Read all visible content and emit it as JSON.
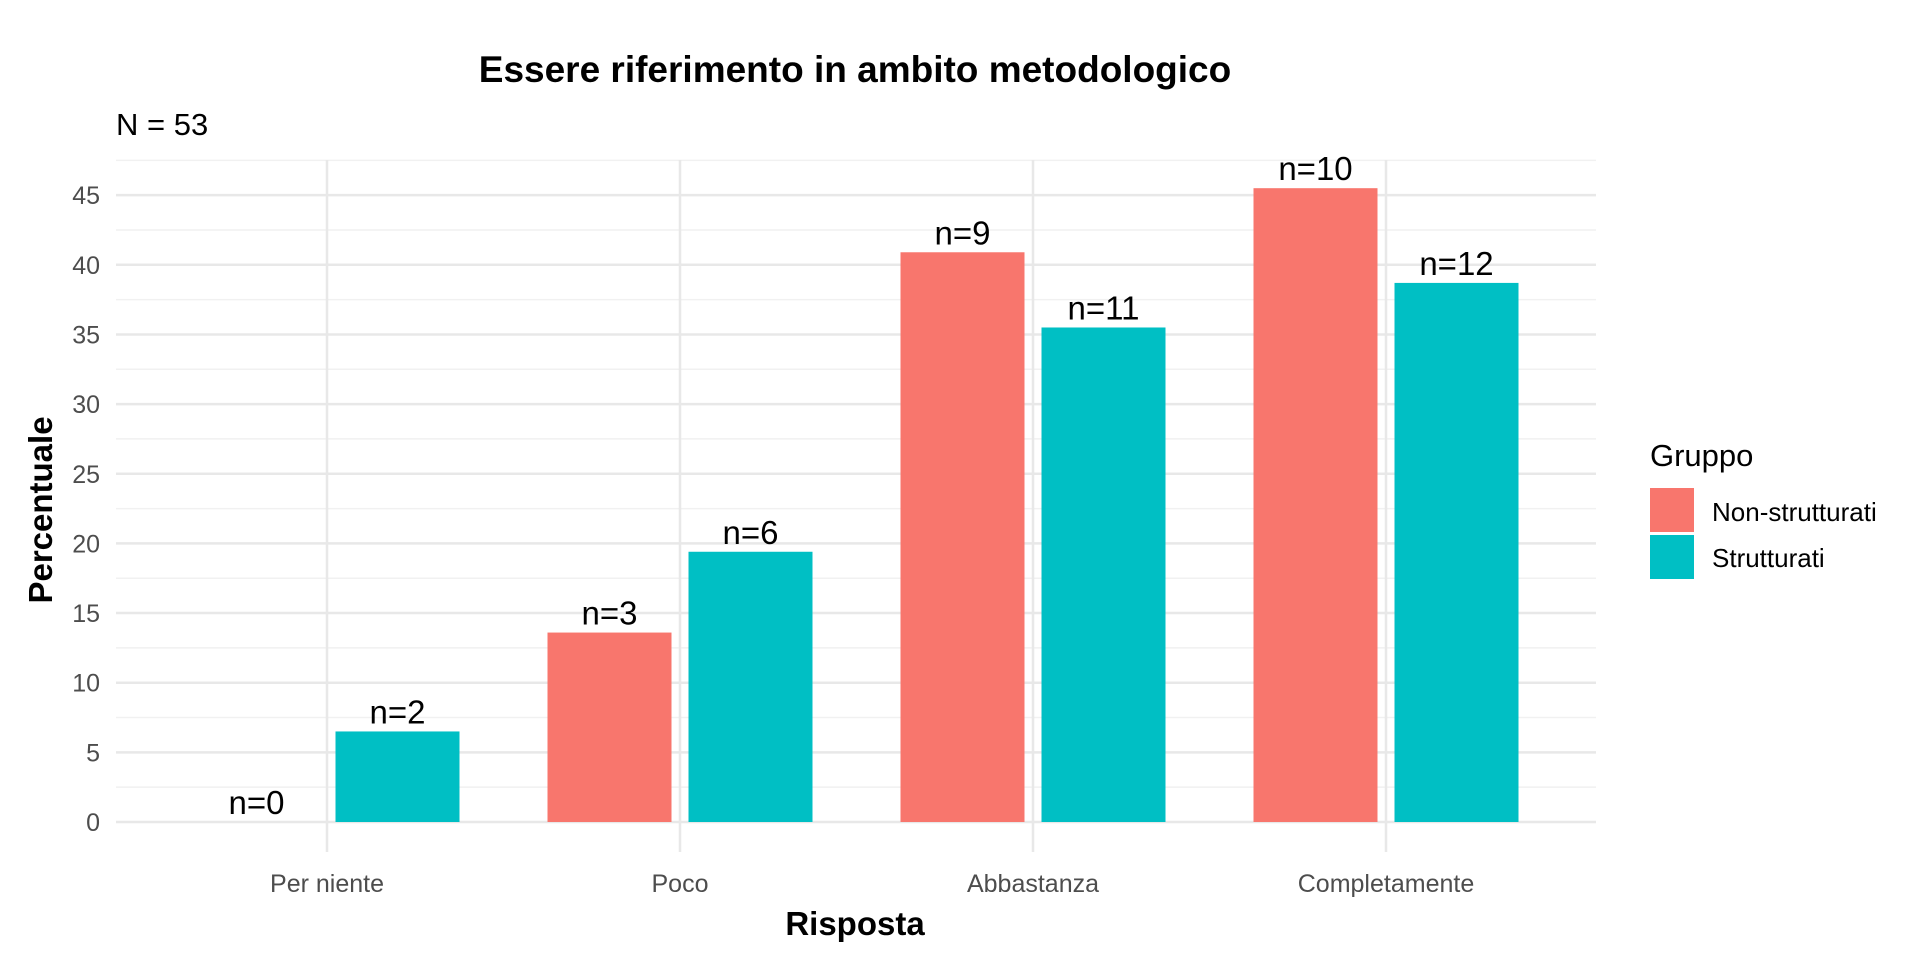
{
  "chart_data": {
    "type": "bar",
    "title": "Essere riferimento in ambito metodologico",
    "subtitle": "N = 53",
    "xlabel": "Risposta",
    "ylabel": "Percentuale",
    "categories": [
      "Per niente",
      "Poco",
      "Abbastanza",
      "Completamente"
    ],
    "ylim": [
      0,
      47.5
    ],
    "yticks": [
      0,
      5,
      10,
      15,
      20,
      25,
      30,
      35,
      40,
      45
    ],
    "grid": true,
    "legend": {
      "title": "Gruppo",
      "position": "right"
    },
    "series": [
      {
        "name": "Non-strutturati",
        "color": "#F8766D",
        "values": [
          0,
          13.6,
          40.9,
          45.5
        ],
        "labels": [
          "n=0",
          "n=3",
          "n=9",
          "n=10"
        ]
      },
      {
        "name": "Strutturati",
        "color": "#00BFC4",
        "values": [
          6.5,
          19.4,
          35.5,
          38.7
        ],
        "labels": [
          "n=2",
          "n=6",
          "n=11",
          "n=12"
        ]
      }
    ]
  }
}
